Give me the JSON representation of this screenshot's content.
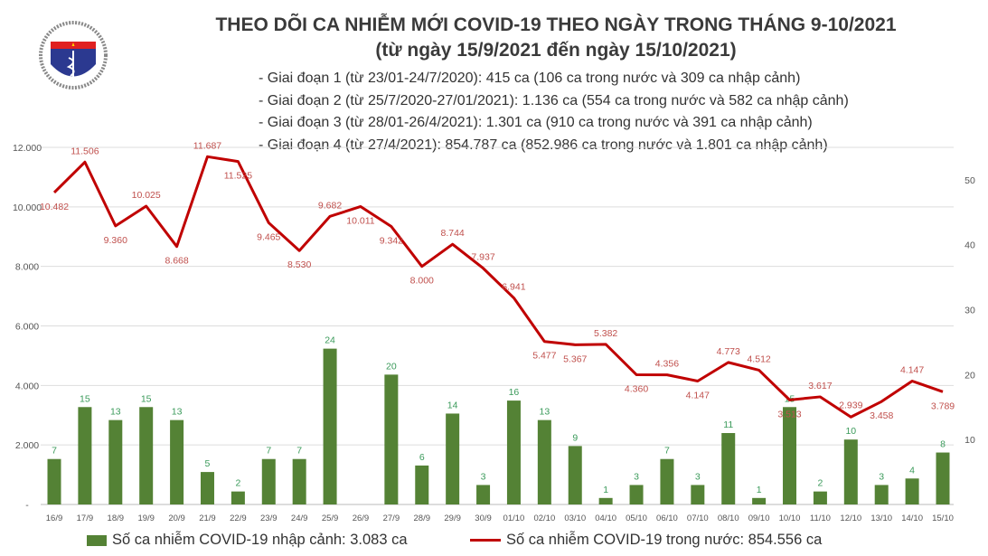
{
  "header": {
    "title": "THEO DÕI CA NHIỄM MỚI COVID-19 THEO NGÀY TRONG THÁNG 9-10/2021",
    "subtitle": "(từ ngày 15/9/2021 đến ngày 15/10/2021)",
    "notes": [
      "- Giai đoạn 1 (từ 23/01-24/7/2020): 415 ca (106 ca trong nước và 309 ca nhập cảnh)",
      "- Giai đoạn 2 (từ 25/7/2020-27/01/2021): 1.136 ca (554 ca trong nước và 582 ca nhập cảnh)",
      "- Giai đoạn 3 (từ 28/01-26/4/2021): 1.301 ca (910 ca trong nước và 391 ca nhập cảnh)",
      "- Giai đoạn 4 (từ 27/4/2021): 854.787 ca (852.986 ca trong nước và 1.801 ca nhập cảnh)"
    ]
  },
  "logo": {
    "top_text": "BỘ Y TẾ",
    "bottom_text": "MINISTRY OF HEALTH"
  },
  "chart_data": {
    "type": "bar+line",
    "categories": [
      "16/9",
      "17/9",
      "18/9",
      "19/9",
      "20/9",
      "21/9",
      "22/9",
      "23/9",
      "24/9",
      "25/9",
      "26/9",
      "27/9",
      "28/9",
      "29/9",
      "30/9",
      "01/10",
      "02/10",
      "03/10",
      "04/10",
      "05/10",
      "06/10",
      "07/10",
      "08/10",
      "09/10",
      "10/10",
      "11/10",
      "12/10",
      "13/10",
      "14/10",
      "15/10"
    ],
    "series": [
      {
        "name": "Số ca nhiễm COVID-19 nhập cảnh: 3.083 ca",
        "type": "bar",
        "axis": "right",
        "color": "#548235",
        "values": [
          7,
          15,
          13,
          15,
          13,
          5,
          2,
          7,
          7,
          24,
          0,
          20,
          6,
          14,
          3,
          16,
          13,
          9,
          1,
          3,
          7,
          3,
          11,
          1,
          15,
          2,
          10,
          3,
          4,
          8
        ],
        "labels": [
          "7",
          "15",
          "13",
          "15",
          "13",
          "5",
          "2",
          "7",
          "7",
          "24",
          "",
          "20",
          "6",
          "14",
          "3",
          "16",
          "13",
          "9",
          "1",
          "3",
          "7",
          "3",
          "11",
          "1",
          "15",
          "2",
          "10",
          "3",
          "4",
          "8"
        ]
      },
      {
        "name": "Số ca nhiễm COVID-19 trong nước: 854.556 ca",
        "type": "line",
        "axis": "left",
        "color": "#c00000",
        "values": [
          10482,
          11506,
          9360,
          10025,
          8668,
          11687,
          11525,
          9465,
          8530,
          9682,
          10011,
          9342,
          8000,
          8744,
          7937,
          6941,
          5477,
          5367,
          5382,
          4360,
          4356,
          4147,
          4773,
          4512,
          3513,
          3617,
          2939,
          3458,
          4147,
          3789
        ],
        "labels": [
          "10.482",
          "11.506",
          "9.360",
          "10.025",
          "8.668",
          "11.687",
          "11.525",
          "9.465",
          "8.530",
          "9.682",
          "10.011",
          "9.342",
          "8.000",
          "8.744",
          "7.937",
          "6.941",
          "5.477",
          "5.367",
          "5.382",
          "4.360",
          "4.356",
          "4.147",
          "4.773",
          "4.512",
          "3.513",
          "3.617",
          "2.939",
          "3.458",
          "4.147",
          "3.789"
        ]
      }
    ],
    "left_axis": {
      "ylim": [
        0,
        12000
      ],
      "ticks": [
        "-",
        "2.000",
        "4.000",
        "6.000",
        "8.000",
        "10.000",
        "12.000"
      ]
    },
    "right_axis": {
      "ylim": [
        0,
        55
      ],
      "ticks": [
        "10",
        "20",
        "30",
        "40",
        "50"
      ]
    },
    "grid": true,
    "legend": "bottom"
  }
}
